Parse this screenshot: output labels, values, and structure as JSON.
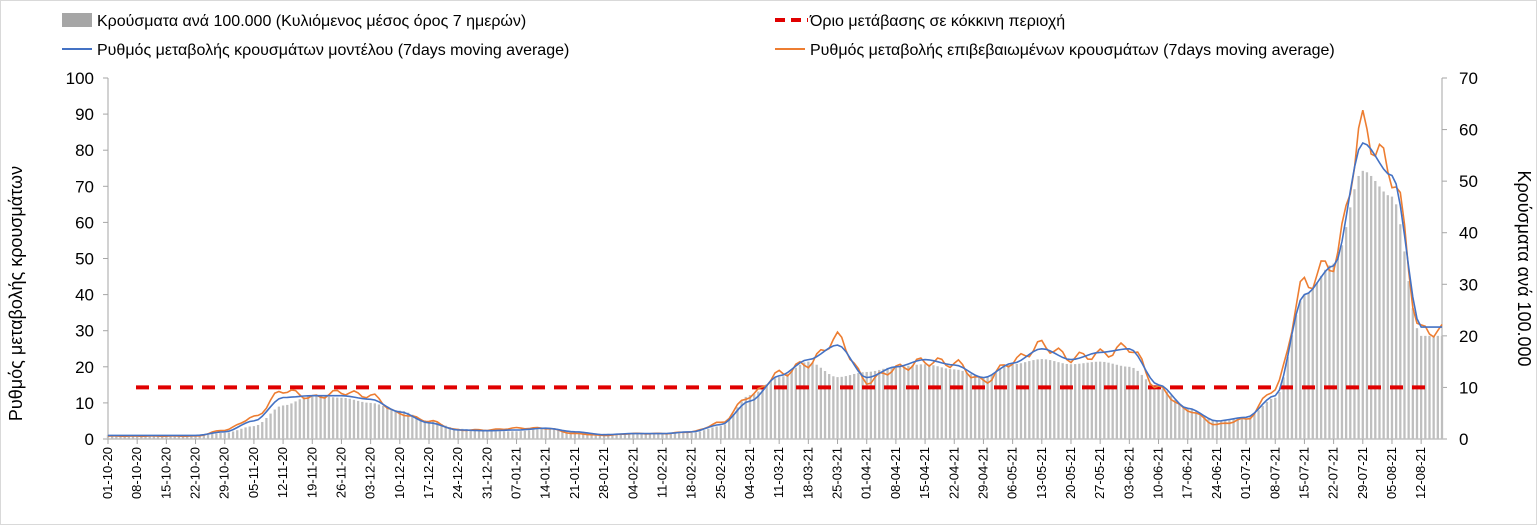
{
  "chart_data": {
    "type": "bar-line-combo",
    "legend": {
      "bars": "Κρούσματα ανά 100.000 (Κυλιόμενος μέσος όρος 7 ημερών)",
      "threshold": "Όριο μετάβασης σε κόκκινη περιοχή",
      "model": "Ρυθμός μεταβολής κρουσμάτων μοντέλου (7days moving average)",
      "confirmed": "Ρυθμός μεταβολής επιβεβαιωμένων κρουσμάτων (7days moving average)"
    },
    "y_left_label": "Ρυθμός μεταβολής κρουσμάτων",
    "y_right_label": "Κρούσματα ανά 100.000",
    "y_left_range": [
      0,
      100
    ],
    "y_left_ticks": [
      "0",
      "10",
      "20",
      "30",
      "40",
      "50",
      "60",
      "70",
      "80",
      "90",
      "100"
    ],
    "y_right_range": [
      0,
      70
    ],
    "y_right_ticks": [
      "0",
      "10",
      "20",
      "30",
      "40",
      "50",
      "60",
      "70"
    ],
    "x_tick_labels": [
      "01-10-20",
      "08-10-20",
      "15-10-20",
      "22-10-20",
      "29-10-20",
      "05-11-20",
      "12-11-20",
      "19-11-20",
      "26-11-20",
      "03-12-20",
      "10-12-20",
      "17-12-20",
      "24-12-20",
      "31-12-20",
      "07-01-21",
      "14-01-21",
      "21-01-21",
      "28-01-21",
      "04-02-21",
      "11-02-21",
      "18-02-21",
      "25-02-21",
      "04-03-21",
      "11-03-21",
      "18-03-21",
      "25-03-21",
      "01-04-21",
      "08-04-21",
      "15-04-21",
      "22-04-21",
      "29-04-21",
      "06-05-21",
      "13-05-21",
      "20-05-21",
      "27-05-21",
      "03-06-21",
      "10-06-21",
      "17-06-21",
      "24-06-21",
      "01-07-21",
      "08-07-21",
      "15-07-21",
      "22-07-21",
      "29-07-21",
      "05-08-21",
      "12-08-21"
    ],
    "threshold_right_axis": 10,
    "bars_weekly_right_axis": [
      0.8,
      0.7,
      0.6,
      0.6,
      1.2,
      2.5,
      6.5,
      8.5,
      8.0,
      7.0,
      5.5,
      3.5,
      2.0,
      1.5,
      1.5,
      2.0,
      1.5,
      1.0,
      1.0,
      1.0,
      1.2,
      2.5,
      8.5,
      12.0,
      15.0,
      12.0,
      13.0,
      14.0,
      14.5,
      13.5,
      12.0,
      14.5,
      15.5,
      14.5,
      15.0,
      14.0,
      10.0,
      6.0,
      3.5,
      4.0,
      8.0,
      28.0,
      34.0,
      52.0,
      47.0,
      20.0
    ],
    "model_weekly_left_axis": [
      1.0,
      1.0,
      1.0,
      1.0,
      2.0,
      5.0,
      11.5,
      12.0,
      12.0,
      11.0,
      7.5,
      4.5,
      2.5,
      2.3,
      2.5,
      3.0,
      2.0,
      1.2,
      1.5,
      1.5,
      2.0,
      4.0,
      10.5,
      17.5,
      22.0,
      26.0,
      17.0,
      20.0,
      22.0,
      20.5,
      17.0,
      21.0,
      25.0,
      22.0,
      24.0,
      25.0,
      15.0,
      8.5,
      5.0,
      6.0,
      12.0,
      40.0,
      48.0,
      82.0,
      73.0,
      31.0
    ],
    "confirmed_weekly_left_axis": [
      0.8,
      0.8,
      0.8,
      0.8,
      2.5,
      6.0,
      13.5,
      11.5,
      13.0,
      12.0,
      7.0,
      5.0,
      2.5,
      2.5,
      3.0,
      3.0,
      1.5,
      1.0,
      1.5,
      1.5,
      2.0,
      4.5,
      12.0,
      18.0,
      21.0,
      28.0,
      16.0,
      19.5,
      21.5,
      21.0,
      16.0,
      21.5,
      26.0,
      22.5,
      23.5,
      25.5,
      14.0,
      8.0,
      4.0,
      5.5,
      14.0,
      43.0,
      49.0,
      86.0,
      74.0,
      30.0
    ]
  }
}
